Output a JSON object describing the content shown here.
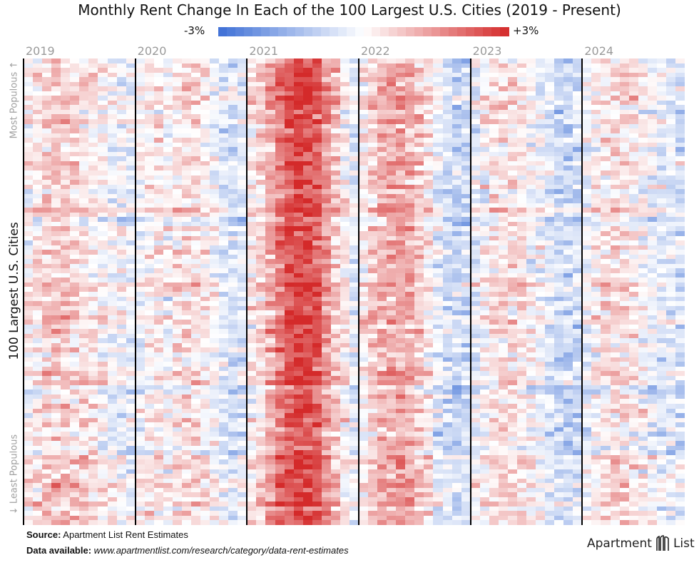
{
  "chart_data": {
    "type": "heatmap",
    "title": "Monthly Rent Change In Each of the 100 Largest U.S. Cities (2019 - Present)",
    "color_scale": {
      "min_label": "-3%",
      "max_label": "+3%",
      "min": -3,
      "max": 3,
      "low_color": "#3d6fd6",
      "mid_color": "#ffffff",
      "high_color": "#d42a2a"
    },
    "x_groups": [
      "2019",
      "2020",
      "2021",
      "2022",
      "2023",
      "2024"
    ],
    "months_per_year": 12,
    "rows": 100,
    "ylabel": "100 Largest U.S. Cities",
    "y_top_label": "Most Populous",
    "y_bottom_label": "Least Populous",
    "monthly_profile_pct": {
      "2019": [
        0.1,
        0.3,
        0.6,
        0.7,
        0.6,
        0.5,
        0.4,
        0.3,
        0.1,
        -0.1,
        -0.2,
        -0.3
      ],
      "2020": [
        -0.1,
        0.1,
        0.3,
        0.0,
        0.2,
        0.5,
        0.4,
        0.2,
        -0.1,
        -0.4,
        -0.6,
        -0.5
      ],
      "2021": [
        0.2,
        0.6,
        1.2,
        1.8,
        2.3,
        2.6,
        2.5,
        2.2,
        1.5,
        0.8,
        0.2,
        -0.3
      ],
      "2022": [
        0.3,
        0.6,
        1.0,
        1.2,
        1.3,
        1.1,
        0.7,
        0.3,
        -0.3,
        -0.7,
        -0.9,
        -0.8
      ],
      "2023": [
        -0.3,
        0.0,
        0.3,
        0.4,
        0.4,
        0.3,
        0.1,
        -0.2,
        -0.5,
        -0.7,
        -0.8,
        -0.7
      ],
      "2024": [
        -0.3,
        0.1,
        0.3,
        0.5,
        0.4,
        0.3,
        0.1,
        -0.2,
        -0.4,
        -0.5,
        -0.6
      ]
    }
  },
  "footer": {
    "source_label": "Source:",
    "source_text": " Apartment List Rent Estimates",
    "data_label": "Data available:",
    "data_url": "www.apartmentlist.com/research/category/data-rent-estimates"
  },
  "logo": {
    "word1": "Apartment",
    "word2": "List"
  }
}
